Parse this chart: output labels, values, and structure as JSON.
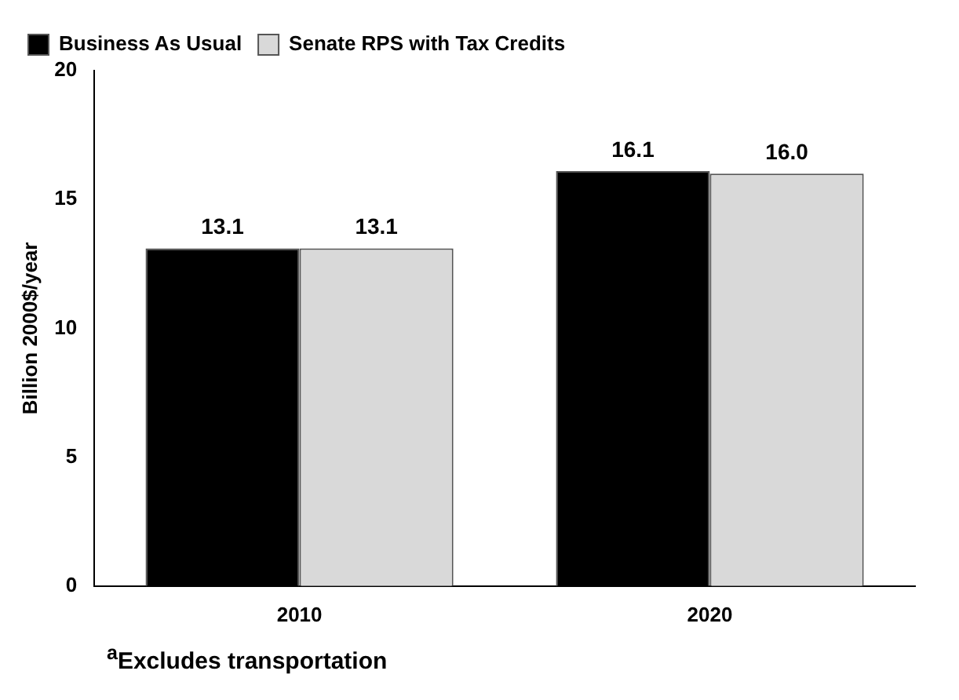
{
  "chart_data": {
    "type": "bar",
    "ylabel": "Billion 2000$/year",
    "categories": [
      "2010",
      "2020"
    ],
    "series": [
      {
        "name": "Business As Usual",
        "color": "#000000",
        "values": [
          13.1,
          16.1
        ],
        "value_labels": [
          "13.1",
          "16.1"
        ]
      },
      {
        "name": "Senate RPS with Tax Credits",
        "color": "#d9d9d9",
        "values": [
          13.1,
          16.0
        ],
        "value_labels": [
          "13.1",
          "16.0"
        ]
      }
    ],
    "ylim": [
      0,
      20
    ],
    "yticks": [
      0,
      5,
      10,
      15,
      20
    ],
    "grid": false,
    "legend": "top left",
    "annotations": [
      "$^{a}$Excludes transportation"
    ]
  }
}
